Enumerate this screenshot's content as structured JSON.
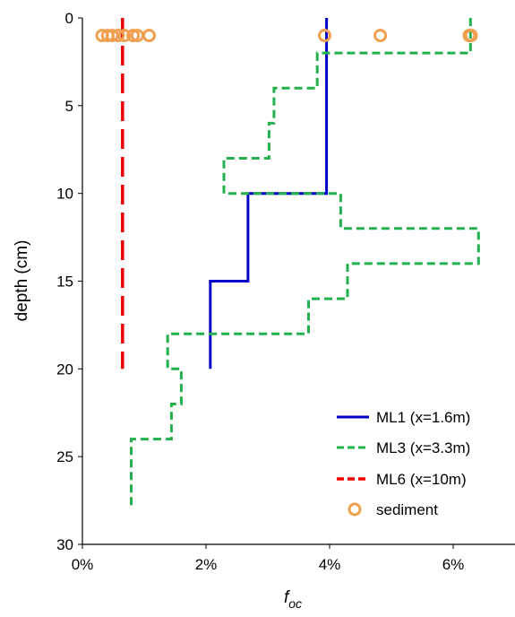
{
  "chart_data": {
    "type": "line",
    "xlabel": "f",
    "xlabel_sub": "oc",
    "ylabel": "depth (cm)",
    "xlim": [
      0,
      0.07
    ],
    "ylim": [
      0,
      30
    ],
    "y_inverted": true,
    "x_ticks": [
      0,
      0.02,
      0.04,
      0.06
    ],
    "x_tick_labels": [
      "0%",
      "2%",
      "4%",
      "6%"
    ],
    "y_ticks": [
      0,
      5,
      10,
      15,
      20,
      25,
      30
    ],
    "y_tick_labels": [
      "0",
      "5",
      "10",
      "15",
      "20",
      "25",
      "30"
    ],
    "grid": false,
    "legend_position": "bottom-right",
    "series": [
      {
        "name": "ML1 (x=1.6m)",
        "style": "solid",
        "color": "#0000c8",
        "points": [
          [
            0.0395,
            0
          ],
          [
            0.0395,
            10
          ],
          [
            0.0268,
            10
          ],
          [
            0.0268,
            15
          ],
          [
            0.0207,
            15
          ],
          [
            0.0207,
            20
          ]
        ]
      },
      {
        "name": "ML3 (x=3.3m)",
        "style": "dashed",
        "color": "#22b14c",
        "points": [
          [
            0.0628,
            0
          ],
          [
            0.0628,
            2
          ],
          [
            0.038,
            2
          ],
          [
            0.038,
            4
          ],
          [
            0.031,
            4
          ],
          [
            0.031,
            6
          ],
          [
            0.0302,
            6
          ],
          [
            0.0302,
            8
          ],
          [
            0.0229,
            8
          ],
          [
            0.0229,
            10
          ],
          [
            0.0418,
            10
          ],
          [
            0.0418,
            12
          ],
          [
            0.0641,
            12
          ],
          [
            0.0641,
            14
          ],
          [
            0.0429,
            14
          ],
          [
            0.0429,
            16
          ],
          [
            0.0366,
            16
          ],
          [
            0.0366,
            18
          ],
          [
            0.0138,
            18
          ],
          [
            0.0138,
            20
          ],
          [
            0.016,
            20
          ],
          [
            0.016,
            22
          ],
          [
            0.0144,
            22
          ],
          [
            0.0144,
            24
          ],
          [
            0.0079,
            24
          ],
          [
            0.0079,
            28
          ]
        ]
      },
      {
        "name": "ML6 (x=10m)",
        "style": "long-dash",
        "color": "#ee0000",
        "points": [
          [
            0.0065,
            0
          ],
          [
            0.0065,
            20
          ]
        ]
      },
      {
        "name": "sediment",
        "style": "marker",
        "color": "#f0a050",
        "points": [
          [
            0.0032,
            1
          ],
          [
            0.0041,
            1
          ],
          [
            0.0048,
            1
          ],
          [
            0.0058,
            1
          ],
          [
            0.0068,
            1
          ],
          [
            0.0082,
            1
          ],
          [
            0.0089,
            1
          ],
          [
            0.0108,
            1
          ],
          [
            0.0392,
            1
          ],
          [
            0.0482,
            1
          ],
          [
            0.0626,
            1
          ],
          [
            0.0629,
            1
          ]
        ]
      }
    ]
  }
}
